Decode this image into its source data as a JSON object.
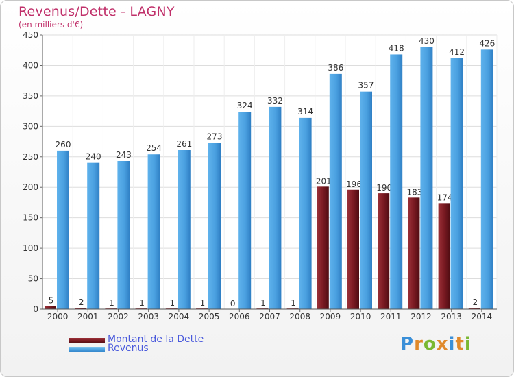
{
  "title": "Revenus/Dette - LAGNY",
  "subtitle": "(en milliers d'€)",
  "logo_text": "Proxiti",
  "colors": {
    "dette": "#7a1a22",
    "revenus": "#4aa0e0",
    "title": "#c0306a",
    "legend_text": "#4a5adc"
  },
  "chart_data": {
    "type": "bar",
    "title": "Revenus/Dette - LAGNY",
    "subtitle": "(en milliers d'€)",
    "categories": [
      "2000",
      "2001",
      "2002",
      "2003",
      "2004",
      "2005",
      "2006",
      "2007",
      "2008",
      "2009",
      "2010",
      "2011",
      "2012",
      "2013",
      "2014"
    ],
    "series": [
      {
        "name": "Montant de la Dette",
        "values": [
          5,
          2,
          1,
          1,
          1,
          1,
          0,
          1,
          1,
          201,
          196,
          190,
          183,
          174,
          2
        ],
        "labels": [
          "5",
          "2",
          "1",
          "1",
          "1",
          "1",
          "0",
          "1",
          "1",
          "201",
          "196",
          "190",
          "183",
          "174",
          "2"
        ]
      },
      {
        "name": "Revenus",
        "values": [
          260,
          240,
          243,
          254,
          261,
          273,
          324,
          332,
          314,
          386,
          357,
          418,
          430,
          412,
          426
        ],
        "labels": [
          "260",
          "240",
          "243",
          "254",
          "261",
          "273",
          "324",
          "332",
          "314",
          "386",
          "357",
          "418",
          "430",
          "412",
          "426"
        ]
      }
    ],
    "ylim": [
      0,
      450
    ],
    "yticks": [
      0,
      50,
      100,
      150,
      200,
      250,
      300,
      350,
      400,
      450
    ],
    "grid": true,
    "legend": "bottom-left"
  }
}
